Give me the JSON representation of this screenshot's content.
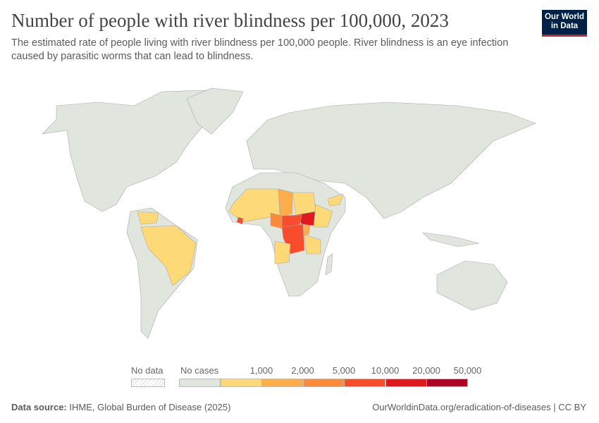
{
  "title": "Number of people with river blindness per 100,000, 2023",
  "subtitle": "The estimated rate of people living with river blindness per 100,000 people. River blindness is an eye infection caused by parasitic worms that can lead to blindness.",
  "logo": {
    "line1": "Our World",
    "line2": "in Data"
  },
  "legend": {
    "no_data": "No data",
    "no_cases": "No cases",
    "thresholds": [
      "1,000",
      "2,000",
      "5,000",
      "10,000",
      "20,000",
      "50,000"
    ],
    "colors": [
      "#e0e5de",
      "#fed977",
      "#fdad49",
      "#fb8b3a",
      "#f84d2d",
      "#e0191d",
      "#b10026"
    ]
  },
  "footer": {
    "source_label": "Data source:",
    "source": "IHME, Global Burden of Disease (2025)",
    "link": "OurWorldinData.org/eradication-of-diseases | CC BY"
  }
}
